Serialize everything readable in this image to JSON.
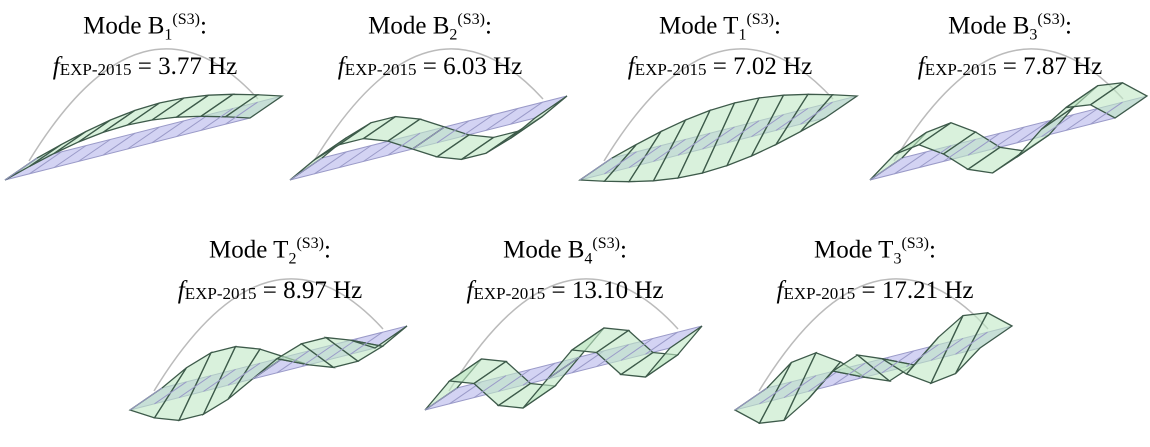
{
  "mode_word": "Mode",
  "superscript": "(S3)",
  "colon": ":",
  "symbol": "f",
  "symbol_sub": "EXP-2015",
  "equals": "=",
  "modes": [
    {
      "letter": "B",
      "index": "1",
      "frequency": "3.77 Hz"
    },
    {
      "letter": "B",
      "index": "2",
      "frequency": "6.03 Hz"
    },
    {
      "letter": "T",
      "index": "1",
      "frequency": "7.02 Hz"
    },
    {
      "letter": "B",
      "index": "3",
      "frequency": "7.87 Hz"
    },
    {
      "letter": "T",
      "index": "2",
      "frequency": "8.97 Hz"
    },
    {
      "letter": "B",
      "index": "4",
      "frequency": "13.10 Hz"
    },
    {
      "letter": "T",
      "index": "3",
      "frequency": "17.21 Hz"
    }
  ]
}
